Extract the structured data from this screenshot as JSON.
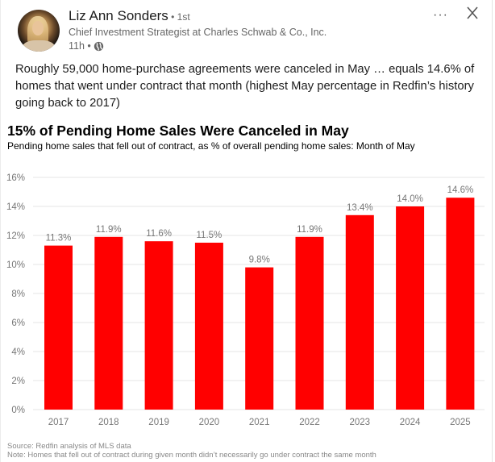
{
  "post": {
    "author_name": "Liz Ann Sonders",
    "connection_degree": " • 1st",
    "headline": "Chief Investment Strategist at Charles Schwab & Co., Inc.",
    "timestamp": "11h •",
    "visibility_icon": "globe-icon",
    "more_icon": "more-horizontal-icon",
    "more_label": "···",
    "close_icon": "close-icon",
    "text": "Roughly 59,000 home-purchase agreements were canceled in May … equals 14.6% of homes that went under contract that month (highest May percentage in Redfin’s history going back to 2017)"
  },
  "chart_data": {
    "type": "bar",
    "title": "15% of Pending Home Sales Were Canceled in May",
    "subtitle": "Pending home sales that fell out of contract, as % of overall pending home sales: Month of May",
    "xlabel": "",
    "ylabel": "",
    "categories": [
      "2017",
      "2018",
      "2019",
      "2020",
      "2021",
      "2022",
      "2023",
      "2024",
      "2025"
    ],
    "values": [
      11.3,
      11.9,
      11.6,
      11.5,
      9.8,
      11.9,
      13.4,
      14.0,
      14.6
    ],
    "data_labels": [
      "11.3%",
      "11.9%",
      "11.6%",
      "11.5%",
      "9.8%",
      "11.9%",
      "13.4%",
      "14.0%",
      "14.6%"
    ],
    "ylim": [
      0,
      16
    ],
    "yticks": [
      0,
      2,
      4,
      6,
      8,
      10,
      12,
      14,
      16
    ],
    "ytick_labels": [
      "0%",
      "2%",
      "4%",
      "6%",
      "8%",
      "10%",
      "12%",
      "14%",
      "16%"
    ],
    "grid": true,
    "legend": "none",
    "bar_color": "#ff0000",
    "source": "Source: Redfin analysis of MLS data",
    "note": "Note: Homes that fell out of contract during given month didn’t necessarily go under contract the same month"
  }
}
